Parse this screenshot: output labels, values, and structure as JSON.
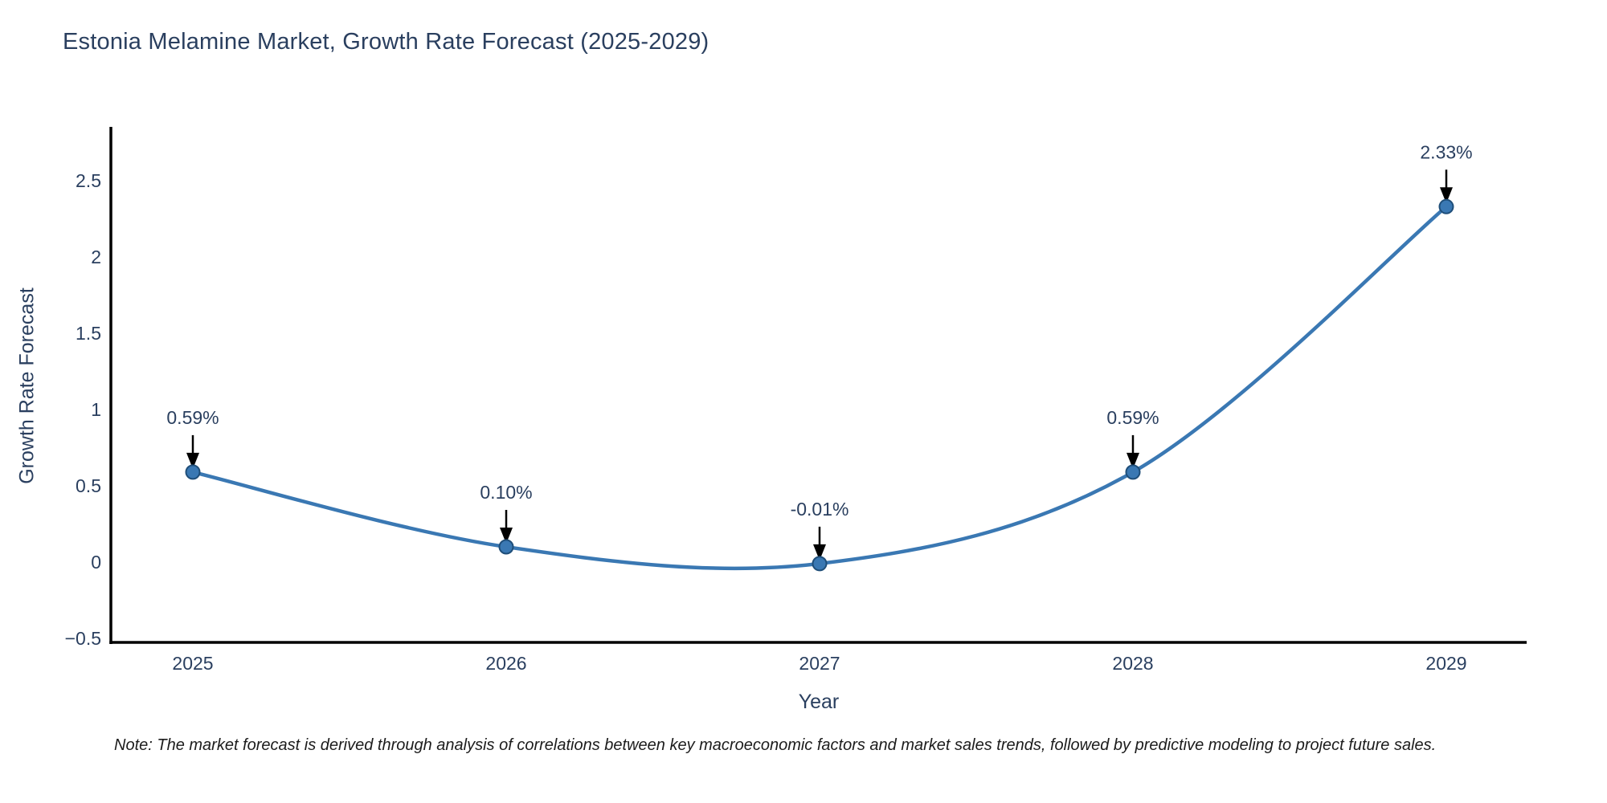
{
  "title": "Estonia Melamine Market, Growth Rate Forecast (2025-2029)",
  "footnote": "Note: The market forecast is derived through analysis of correlations between key macroeconomic factors and market sales trends, followed by predictive modeling to project future sales.",
  "chart_data": {
    "type": "line",
    "title": "Estonia Melamine Market, Growth Rate Forecast (2025-2029)",
    "xlabel": "Year",
    "ylabel": "Growth Rate Forecast",
    "categories": [
      "2025",
      "2026",
      "2027",
      "2028",
      "2029"
    ],
    "series": [
      {
        "name": "Growth Rate Forecast",
        "values": [
          0.59,
          0.1,
          -0.01,
          0.59,
          2.33
        ],
        "point_labels": [
          "0.59%",
          "0.10%",
          "-0.01%",
          "0.59%",
          "2.33%"
        ]
      }
    ],
    "ytick_values": [
      2.5,
      2,
      1.5,
      1,
      0.5,
      0,
      -0.5
    ],
    "ytick_labels": [
      "2.5",
      "2",
      "1.5",
      "1",
      "0.5",
      "0",
      "−0.5"
    ],
    "ylim": [
      -0.54,
      2.85
    ],
    "grid": false,
    "legend": "none",
    "line_shape": "spline",
    "annotation_arrows": true,
    "colors": {
      "line": "#3a78b3",
      "marker_fill": "#3a78b3",
      "marker_edge": "#1f4e79",
      "arrow": "#000000",
      "axis_spine": "#000000",
      "text": "#2a3f5f",
      "background": "#ffffff"
    }
  }
}
